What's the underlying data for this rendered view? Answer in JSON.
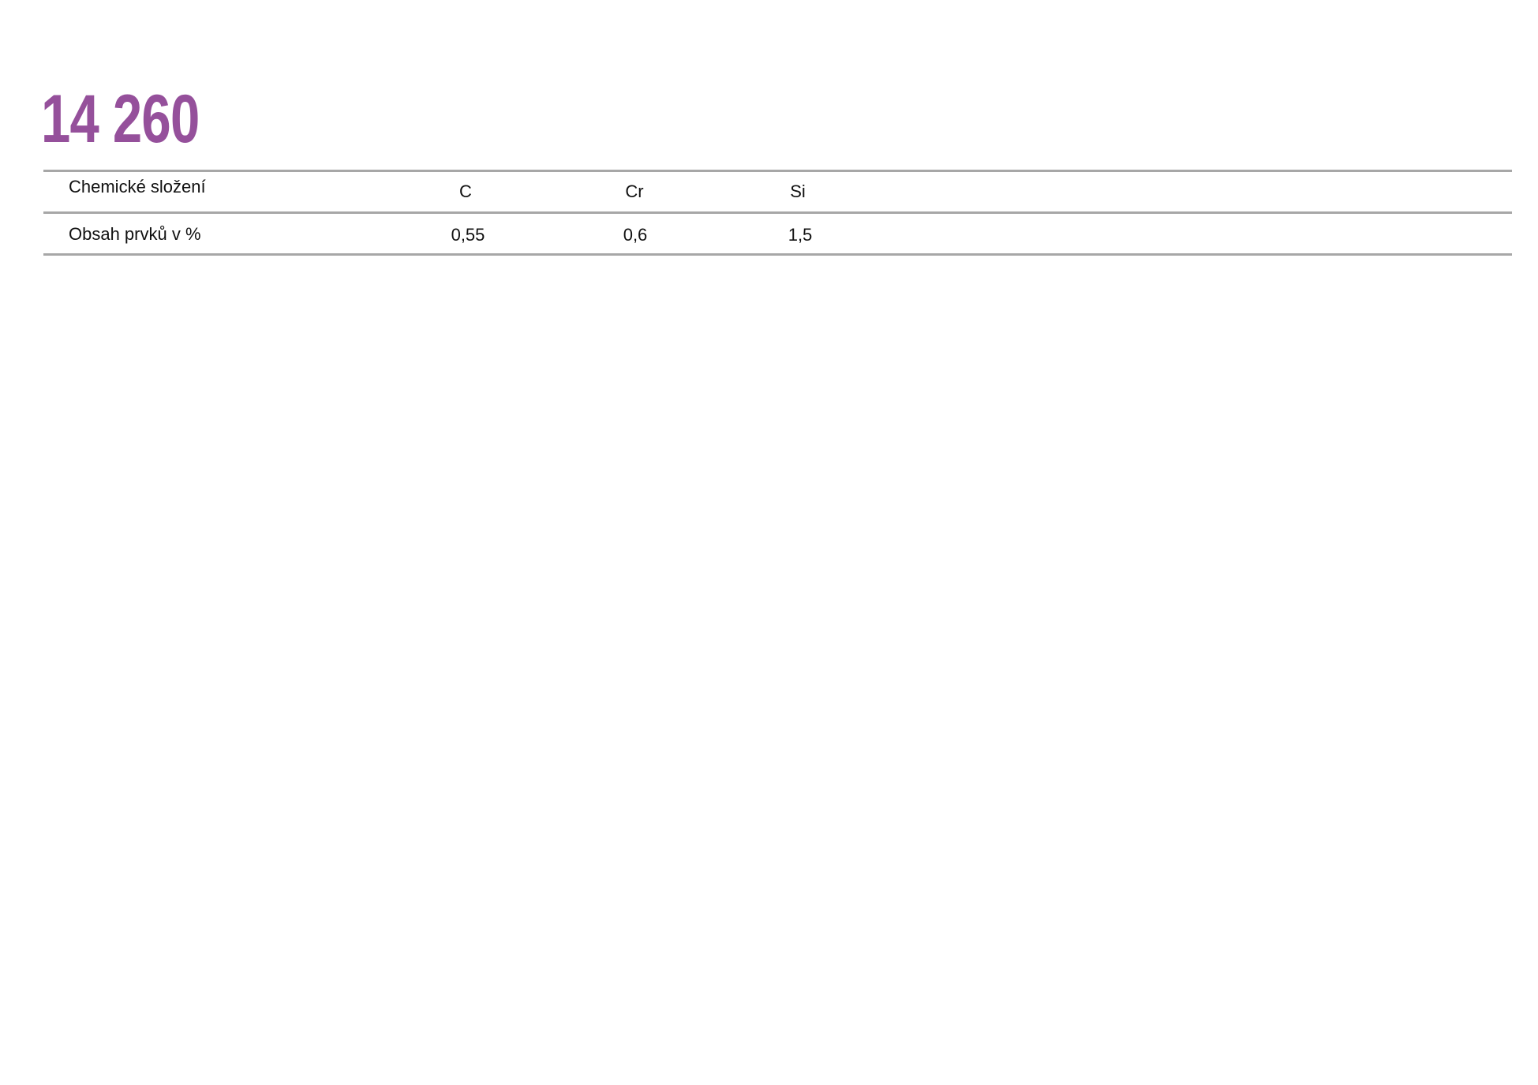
{
  "title": "14 260",
  "table": {
    "header": {
      "label": "Chemické složení",
      "columns": [
        "C",
        "Cr",
        "Si"
      ]
    },
    "row": {
      "label": "Obsah prvků v %",
      "values": [
        "0,55",
        "0,6",
        "1,5"
      ]
    }
  },
  "colors": {
    "title": "#95509b",
    "rules": "#a7a7a7"
  }
}
